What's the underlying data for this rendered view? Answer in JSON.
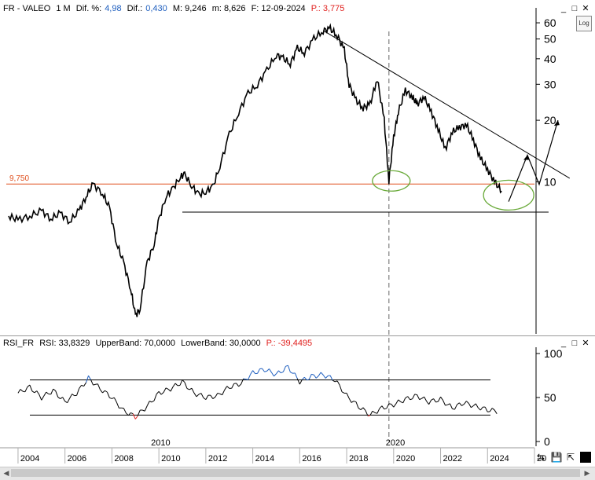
{
  "header": {
    "symbol": "FR - VALEO",
    "period": "1 M",
    "dif_pct_label": "Dif. %:",
    "dif_pct_value": "4,98",
    "dif_label": "Dif.:",
    "dif_value": "0,430",
    "max": "M: 9,246",
    "min": "m: 8,626",
    "date": "F: 12-09-2024",
    "price": "P.: 3,775"
  },
  "log_button": "Log",
  "rsi_header": {
    "name": "RSI_FR",
    "rsi": "RSI: 33,8329",
    "upper": "UpperBand: 70,0000",
    "lower": "LowerBand: 30,0000",
    "p": "P.: -39,4495"
  },
  "colors": {
    "price": "#000000",
    "level_line": "#e0501e",
    "ellipse": "#6aaa3a",
    "rsi_overbought": "#1f5fbf",
    "rsi_oversold": "#e0201e"
  },
  "chart_data": [
    {
      "type": "line",
      "title": "FR - VALEO",
      "yscale": "log",
      "ylim": [
        1.8,
        65
      ],
      "y_ticks": [
        "10",
        "20",
        "30",
        "40",
        "50",
        "60"
      ],
      "x_ticks": [
        "2004",
        "2006",
        "2008",
        "2010",
        "2012",
        "2014",
        "2016",
        "2018",
        "2020",
        "2022",
        "2024",
        "20"
      ],
      "x_range": [
        2003.5,
        2026.0
      ],
      "grid": false,
      "level_label": "9,750",
      "level_value": 9.75,
      "series": [
        {
          "x": [
            2003.6,
            2004.0,
            2004.5,
            2005.0,
            2005.4,
            2005.8,
            2006.2,
            2006.6,
            2006.9,
            2007.2,
            2007.6,
            2007.9,
            2008.2,
            2008.5,
            2008.8,
            2009.0,
            2009.2,
            2009.5,
            2009.8,
            2010.0,
            2010.3,
            2010.6,
            2010.9,
            2011.1,
            2011.4,
            2011.7,
            2012.0,
            2012.3,
            2012.6,
            2013.0,
            2013.4,
            2013.8,
            2014.2,
            2014.6,
            2015.0,
            2015.3,
            2015.6,
            2015.9,
            2016.2,
            2016.6,
            2017.0,
            2017.3,
            2017.6,
            2017.9,
            2018.1,
            2018.4,
            2018.7,
            2019.0,
            2019.3,
            2019.6,
            2019.8,
            2020.0,
            2020.2,
            2020.5,
            2020.8,
            2021.0,
            2021.3,
            2021.6,
            2021.9,
            2022.2,
            2022.5,
            2022.8,
            2023.1,
            2023.4,
            2023.7,
            2024.0,
            2024.3,
            2024.6
          ],
          "y": [
            6.8,
            6.5,
            6.8,
            7.2,
            6.6,
            7.0,
            6.4,
            7.2,
            8.5,
            9.7,
            8.8,
            7.4,
            5.0,
            4.0,
            3.0,
            2.2,
            2.4,
            4.0,
            5.0,
            6.5,
            8.5,
            9.2,
            10.6,
            10.8,
            9.6,
            8.6,
            9.0,
            9.4,
            12.0,
            17.0,
            22.0,
            27.0,
            30.0,
            35.0,
            42.0,
            40.0,
            38.0,
            45.0,
            43.0,
            50.0,
            55.0,
            56.0,
            52.0,
            44.0,
            30.0,
            25.0,
            23.0,
            24.0,
            32.0,
            20.0,
            10.1,
            16.5,
            22.0,
            28.0,
            26.0,
            24.0,
            26.0,
            22.0,
            18.0,
            14.5,
            17.5,
            18.5,
            19.0,
            16.0,
            13.0,
            11.5,
            10.0,
            9.0
          ]
        }
      ],
      "forecast_path": {
        "x": [
          2024.9,
          2025.7,
          2026.2,
          2027.0
        ],
        "y": [
          8.0,
          13.5,
          9.7,
          20.0
        ]
      },
      "trendline": {
        "x": [
          2017.0,
          2027.5
        ],
        "y": [
          55.0,
          10.4
        ]
      },
      "support_line": {
        "x": [
          2011.0,
          2026.6
        ],
        "y": [
          7.1,
          7.1
        ]
      },
      "annotations": [
        "circle at 2020 low",
        "circle at 2024 low"
      ]
    },
    {
      "type": "line",
      "title": "RSI_FR",
      "ylim": [
        0,
        100
      ],
      "y_ticks": [
        "0",
        "50",
        "100"
      ],
      "x_ticks": [
        "2010",
        "2020"
      ],
      "upper_band": 70,
      "lower_band": 30,
      "series": [
        {
          "x": [
            2004.0,
            2004.5,
            2005.0,
            2005.5,
            2006.0,
            2006.5,
            2007.0,
            2007.5,
            2008.0,
            2008.5,
            2009.0,
            2009.5,
            2010.0,
            2010.5,
            2011.0,
            2011.5,
            2012.0,
            2012.5,
            2013.0,
            2013.5,
            2014.0,
            2014.5,
            2015.0,
            2015.5,
            2016.0,
            2016.5,
            2017.0,
            2017.5,
            2018.0,
            2018.5,
            2019.0,
            2019.5,
            2020.0,
            2020.5,
            2021.0,
            2021.5,
            2022.0,
            2022.5,
            2023.0,
            2023.5,
            2024.0,
            2024.5
          ],
          "y": [
            55,
            62,
            50,
            58,
            45,
            55,
            72,
            60,
            50,
            35,
            28,
            40,
            55,
            60,
            68,
            55,
            50,
            52,
            62,
            66,
            78,
            82,
            76,
            85,
            68,
            74,
            76,
            70,
            52,
            40,
            30,
            38,
            42,
            48,
            52,
            45,
            48,
            38,
            44,
            40,
            36,
            34
          ]
        }
      ]
    }
  ]
}
